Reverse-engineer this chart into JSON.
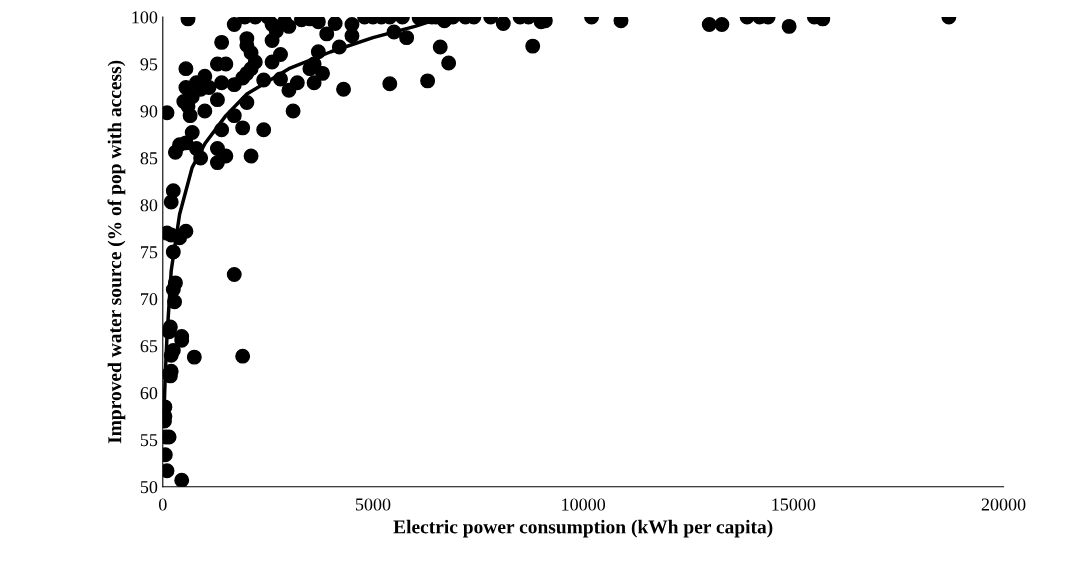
{
  "chart_data": {
    "type": "scatter",
    "xlabel": "Electric power consumption (kWh per capita)",
    "ylabel": "Improved water source (% of pop with access)",
    "xlim": [
      0,
      20000
    ],
    "xticks": [
      0,
      5000,
      10000,
      15000,
      20000
    ],
    "ylim": [
      50,
      100
    ],
    "yticks": [
      50,
      55,
      60,
      65,
      70,
      75,
      80,
      85,
      90,
      95,
      100
    ],
    "grid": false,
    "legend": false,
    "marker": "circle",
    "series": [
      {
        "color": "#000000",
        "x": [
          50,
          50,
          40,
          80,
          150,
          60,
          100,
          450,
          200,
          150,
          180,
          250,
          200,
          450,
          450,
          180,
          150,
          300,
          250,
          280,
          100,
          200,
          400,
          550,
          250,
          250,
          200,
          100,
          1700,
          1900,
          750,
          300,
          400,
          550,
          700,
          800,
          900,
          1000,
          650,
          600,
          500,
          700,
          550,
          800,
          1000,
          1100,
          900,
          550,
          1300,
          1400,
          1300,
          1500,
          1400,
          1300,
          1300,
          1500,
          1400,
          1700,
          1700,
          1900,
          2000,
          2100,
          1900,
          2000,
          2100,
          2000,
          2100,
          2200,
          2000,
          1700,
          1950,
          2200,
          600,
          2400,
          2400,
          2600,
          2600,
          2700,
          2600,
          2500,
          2800,
          2800,
          3000,
          3100,
          3200,
          2900,
          3000,
          3300,
          3500,
          3600,
          3700,
          3800,
          3600,
          3700,
          3900,
          4200,
          4100,
          4300,
          4500,
          4500,
          4800,
          5000,
          5200,
          5400,
          5500,
          5800,
          5400,
          6300,
          6400,
          6600,
          6800,
          6700,
          6900,
          7200,
          7400,
          7800,
          8100,
          8500,
          8700,
          8800,
          9000,
          9100,
          10200,
          10900,
          13000,
          13300,
          13900,
          14200,
          14400,
          14900,
          15500,
          15700,
          18700,
          3500,
          5700,
          6500,
          6100
        ],
        "values": [
          58.5,
          57.5,
          57,
          55.3,
          55.3,
          53.4,
          51.7,
          50.7,
          62.3,
          62,
          61.8,
          64.5,
          64,
          66,
          65.6,
          67,
          66.5,
          71.7,
          71,
          69.7,
          77,
          76.8,
          76.5,
          77.2,
          75,
          81.5,
          80.3,
          89.8,
          72.6,
          63.9,
          63.8,
          85.6,
          86.4,
          86.6,
          87.7,
          86,
          85,
          90,
          89.5,
          90.5,
          91,
          91.5,
          92.5,
          93,
          93.7,
          92.5,
          92.3,
          94.5,
          91.2,
          93,
          95,
          95,
          97.3,
          86,
          84.5,
          85.2,
          88,
          89.5,
          92.8,
          88.2,
          90.9,
          85.2,
          93.5,
          94,
          94.5,
          97,
          96.2,
          95.2,
          97.7,
          99.2,
          100,
          100,
          99.8,
          88,
          93.3,
          95.2,
          97.5,
          98.5,
          99.2,
          100,
          93.4,
          96,
          92.2,
          90,
          93,
          99.5,
          99,
          99.7,
          94.5,
          93,
          96.3,
          94,
          95,
          99.5,
          98.2,
          96.8,
          99.3,
          92.3,
          98,
          99.2,
          100,
          100,
          100,
          92.9,
          98.4,
          97.8,
          100,
          93.2,
          100,
          96.8,
          95.1,
          99.6,
          100,
          100,
          100,
          100,
          99.3,
          100,
          100,
          96.9,
          99.5,
          99.6,
          100,
          99.6,
          99.2,
          99.2,
          100,
          100,
          100,
          99,
          100,
          99.8,
          100,
          99.8,
          100,
          100,
          99.9
        ]
      },
      {
        "type": "line",
        "color": "#000000",
        "marker": "none",
        "line_style": "solid",
        "x": [
          30,
          60,
          100,
          200,
          400,
          700,
          1000,
          1500,
          2000,
          3000,
          4000,
          5000,
          6000,
          6700
        ],
        "values": [
          58,
          62,
          66,
          73,
          79,
          84,
          86.5,
          89.5,
          91.8,
          94.5,
          96.3,
          97.8,
          99,
          100
        ]
      }
    ]
  }
}
